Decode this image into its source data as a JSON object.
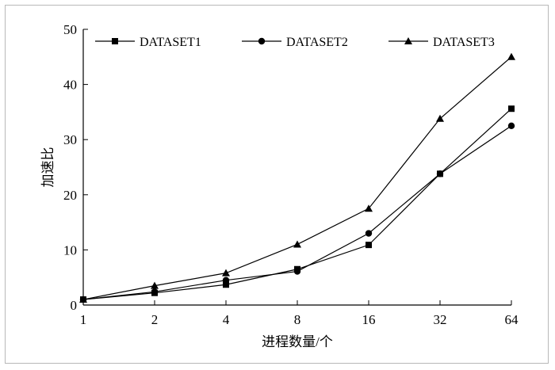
{
  "chart_data": {
    "type": "line",
    "x_scale": "log2",
    "categories": [
      "1",
      "2",
      "4",
      "8",
      "16",
      "32",
      "64"
    ],
    "x": [
      1,
      2,
      4,
      8,
      16,
      32,
      64
    ],
    "xlabel": "进程数量/个",
    "ylabel": "加速比",
    "ylim": [
      0,
      50
    ],
    "yticks": [
      "0",
      "10",
      "20",
      "30",
      "40",
      "50"
    ],
    "grid": false,
    "legend_position": "top",
    "series": [
      {
        "name": "DATASET1",
        "marker": "square",
        "values": [
          1,
          2.2,
          3.7,
          6.5,
          10.9,
          23.8,
          35.6
        ]
      },
      {
        "name": "DATASET2",
        "marker": "circle",
        "values": [
          1,
          2.4,
          4.5,
          6.1,
          13.0,
          23.8,
          32.5
        ]
      },
      {
        "name": "DATASET3",
        "marker": "triangle",
        "values": [
          1,
          3.5,
          5.8,
          11.0,
          17.5,
          33.8,
          45.0
        ]
      }
    ],
    "colors": {
      "line": "#000000",
      "axis": "#000000"
    }
  }
}
